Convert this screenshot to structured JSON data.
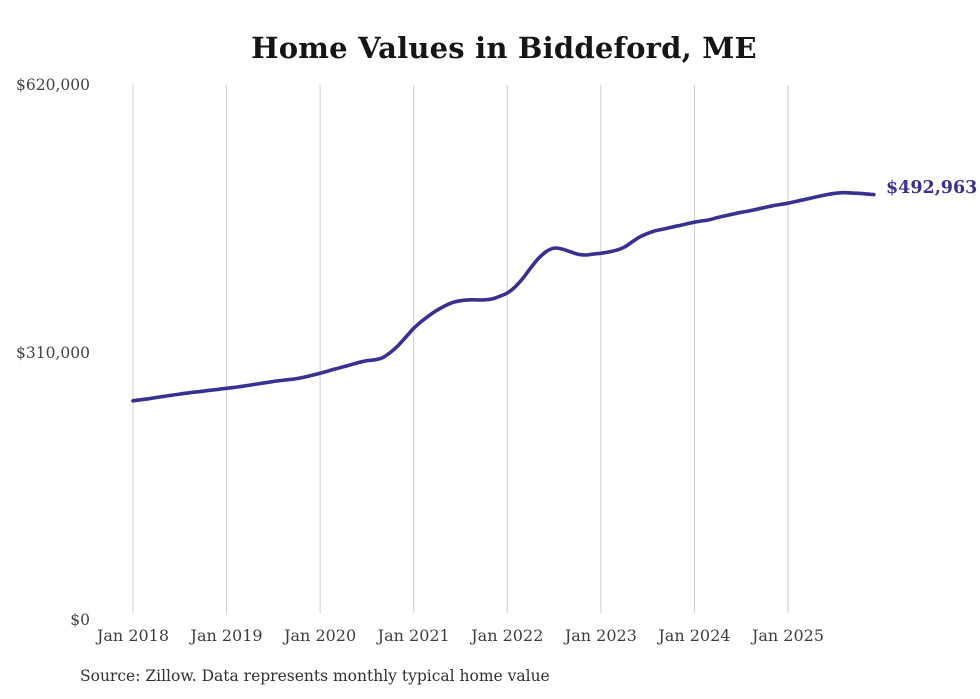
{
  "title": "Home Values in Biddeford, ME",
  "end_label": "$492,963",
  "source_note": "Source: Zillow. Data represents monthly typical home value",
  "colors": {
    "line": "#39318f",
    "grid": "#cccccc",
    "axis_text": "#434343",
    "title_text": "#151515",
    "end_label_text": "#39318f",
    "background": "#ffffff"
  },
  "chart_data": {
    "type": "line",
    "title": "Home Values in Biddeford, ME",
    "xlabel": "",
    "ylabel": "",
    "x_interval": "monthly",
    "x_start": "Jan 2018",
    "x_end": "Dec 2025",
    "x_tick_labels": [
      "Jan 2018",
      "Jan 2019",
      "Jan 2020",
      "Jan 2021",
      "Jan 2022",
      "Jan 2023",
      "Jan 2024",
      "Jan 2025"
    ],
    "y_ticks": [
      {
        "value": 0,
        "label": "$0"
      },
      {
        "value": 310000,
        "label": "$310,000"
      },
      {
        "value": 620000,
        "label": "$620,000"
      }
    ],
    "ylim": [
      0,
      620000
    ],
    "grid": "vertical-only",
    "legend": "none",
    "final_value": 492963,
    "values": [
      254000,
      255200,
      256400,
      257800,
      259200,
      260500,
      261800,
      263000,
      264100,
      265200,
      266300,
      267400,
      268500,
      269600,
      270800,
      272200,
      273600,
      275000,
      276400,
      277600,
      278600,
      279800,
      281500,
      283600,
      286000,
      288500,
      291000,
      293500,
      296000,
      298500,
      300500,
      301500,
      304000,
      310000,
      318000,
      328000,
      338000,
      346000,
      353000,
      359000,
      364000,
      368000,
      370000,
      371000,
      371000,
      371000,
      372000,
      375000,
      379000,
      386000,
      396000,
      408000,
      419000,
      427000,
      431000,
      430000,
      427000,
      424000,
      423000,
      424000,
      425000,
      426500,
      428500,
      432000,
      438000,
      444000,
      448000,
      451000,
      453000,
      455000,
      457000,
      459000,
      461000,
      462500,
      464000,
      466500,
      468500,
      470500,
      472500,
      474000,
      476000,
      478000,
      480000,
      481500,
      483000,
      485000,
      487000,
      489000,
      491000,
      493000,
      494500,
      495200,
      495000,
      494500,
      493800,
      492963
    ]
  }
}
